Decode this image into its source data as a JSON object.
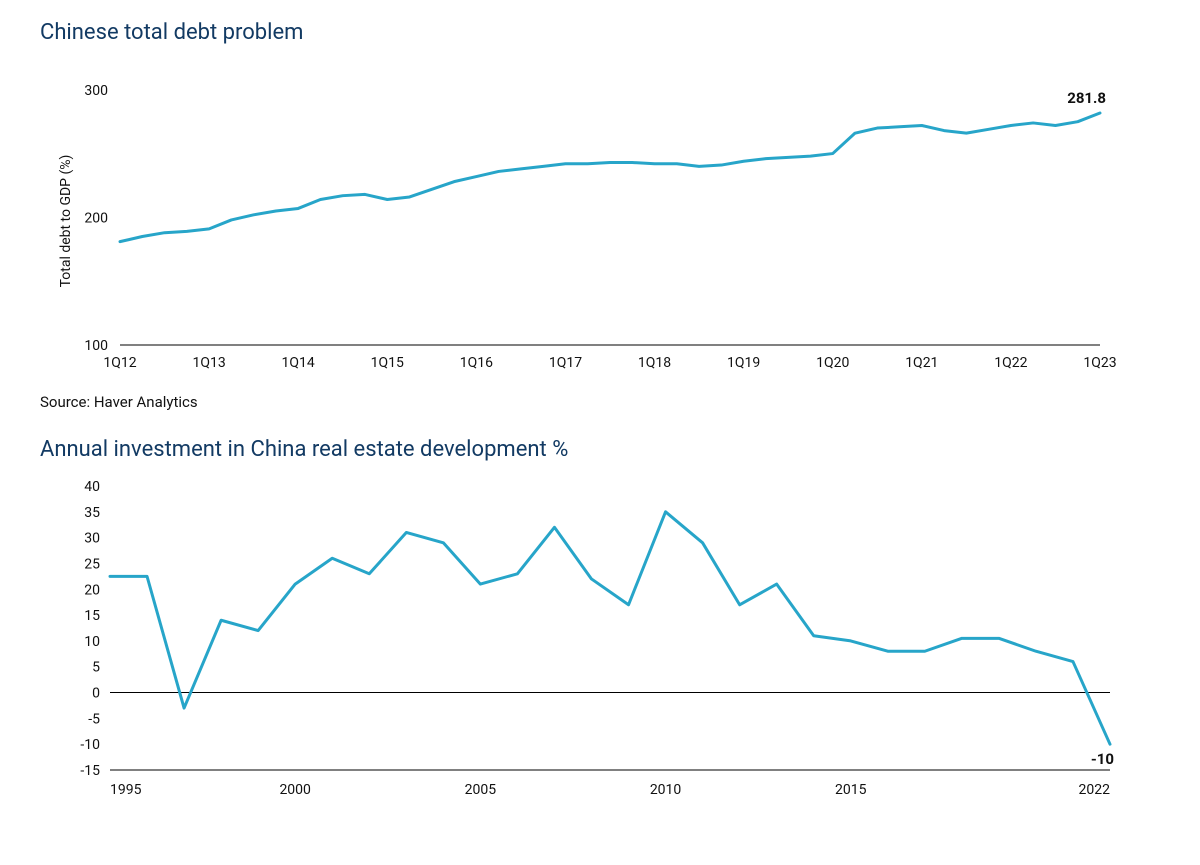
{
  "chart1": {
    "type": "line",
    "title": "Chinese total debt problem",
    "title_color": "#123a63",
    "title_fontsize": 22,
    "ylabel": "Total debt to GDP (%)",
    "ylabel_fontsize": 14,
    "y_ticks": [
      100,
      200,
      300
    ],
    "ylim": [
      100,
      310
    ],
    "x_labels": [
      "1Q12",
      "1Q13",
      "1Q14",
      "1Q15",
      "1Q16",
      "1Q17",
      "1Q18",
      "1Q19",
      "1Q20",
      "1Q21",
      "1Q22",
      "1Q23"
    ],
    "x_label_indices": [
      0,
      4,
      8,
      12,
      16,
      20,
      24,
      28,
      32,
      36,
      40,
      44
    ],
    "n_points": 45,
    "values": [
      181,
      185,
      188,
      189,
      191,
      198,
      202,
      205,
      207,
      214,
      217,
      218,
      214,
      216,
      222,
      228,
      232,
      236,
      238,
      240,
      242,
      242,
      243,
      243,
      242,
      242,
      240,
      241,
      244,
      246,
      247,
      248,
      250,
      266,
      270,
      271,
      272,
      268,
      266,
      269,
      272,
      274,
      272,
      275,
      281.8
    ],
    "end_label": "281.8",
    "line_color": "#27a5c9",
    "line_width": 3,
    "background_color": "#ffffff",
    "axis_color": "#000000",
    "tick_fontsize": 14,
    "source": "Source: Haver Analytics",
    "source_fontsize": 15,
    "source_color": "#111111"
  },
  "chart2": {
    "type": "line",
    "title": "Annual investment in China real estate development %",
    "title_color": "#123a63",
    "title_fontsize": 22,
    "y_ticks": [
      -15,
      -10,
      -5,
      0,
      5,
      10,
      15,
      20,
      25,
      30,
      35,
      40
    ],
    "ylim": [
      -15,
      40
    ],
    "x_labels_major": [
      "1995",
      "2000",
      "2005",
      "2010",
      "2015",
      "2022"
    ],
    "x_major_values": [
      1995,
      2000,
      2005,
      2010,
      2015,
      2022
    ],
    "xlim": [
      1995,
      2022
    ],
    "years": [
      1995,
      1996,
      1997,
      1998,
      1999,
      2000,
      2001,
      2002,
      2003,
      2004,
      2005,
      2006,
      2007,
      2008,
      2009,
      2010,
      2011,
      2012,
      2013,
      2014,
      2015,
      2016,
      2017,
      2018,
      2019,
      2020,
      2021,
      2022
    ],
    "values": [
      22.5,
      22.5,
      -3,
      14,
      12,
      21,
      26,
      23,
      31,
      29,
      21,
      23,
      32,
      22,
      17,
      35,
      29,
      17,
      21,
      11,
      10,
      8,
      8,
      10.5,
      10.5,
      8,
      6,
      -10
    ],
    "end_label": "-10",
    "line_color": "#27a5c9",
    "line_width": 3,
    "background_color": "#ffffff",
    "axis_color": "#000000",
    "zero_line_color": "#000000",
    "tick_fontsize": 14
  }
}
